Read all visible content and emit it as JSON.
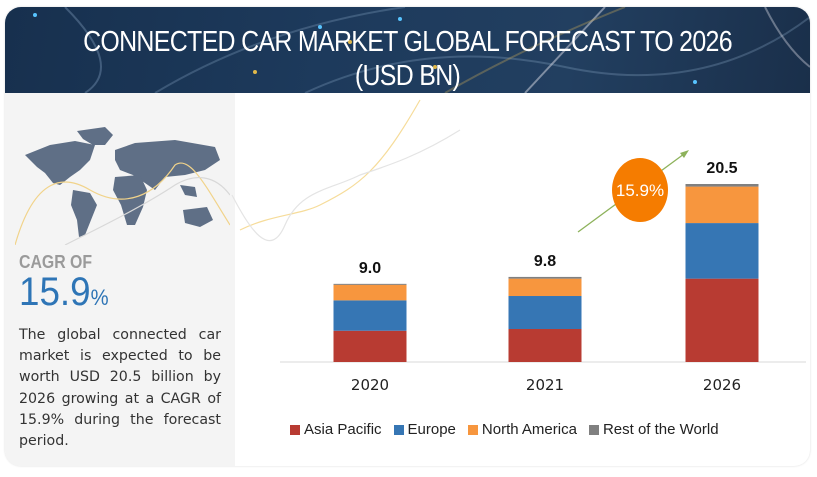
{
  "header": {
    "title": "CONNECTED CAR MARKET GLOBAL FORECAST TO 2026 (USD BN)"
  },
  "left_panel": {
    "map_icon": "world-map",
    "cagr_label": "CAGR OF",
    "cagr_value": "15.9",
    "cagr_unit": "%",
    "description": "The global connected car market is expected to be worth USD 20.5 billion by 2026 growing at a CAGR of 15.9% during the forecast period."
  },
  "badge": {
    "text": "15.9%",
    "color": "#f57c00"
  },
  "chart_data": {
    "type": "bar",
    "stacked": true,
    "title": "CONNECTED CAR MARKET GLOBAL FORECAST TO 2026 (USD BN)",
    "xlabel": "",
    "ylabel": "",
    "categories": [
      "2020",
      "2021",
      "2026"
    ],
    "totals": [
      "9.0",
      "9.8",
      "20.5"
    ],
    "series": [
      {
        "name": "Asia Pacific",
        "color": "#b83b32",
        "values": [
          3.6,
          3.8,
          9.6
        ]
      },
      {
        "name": "Europe",
        "color": "#3676b4",
        "values": [
          3.5,
          3.8,
          6.4
        ]
      },
      {
        "name": "North America",
        "color": "#f7963e",
        "values": [
          1.8,
          2.0,
          4.2
        ]
      },
      {
        "name": "Rest of the World",
        "color": "#808080",
        "values": [
          0.1,
          0.2,
          0.3
        ]
      }
    ],
    "ylim": [
      0,
      20.5
    ],
    "grid": false,
    "legend": "bottom",
    "annotation": "15.9%"
  }
}
